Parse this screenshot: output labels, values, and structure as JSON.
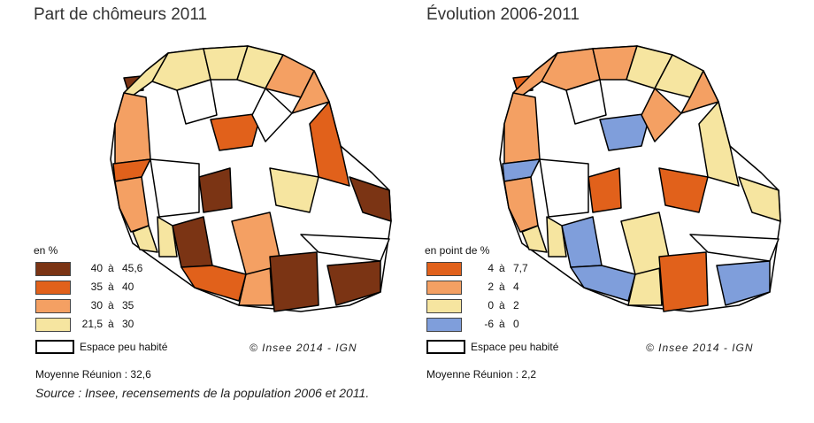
{
  "maps": [
    {
      "title": "Part de chômeurs 2011",
      "legend_title": "en %",
      "classes": [
        {
          "lo": "40",
          "sep": "à",
          "hi": "45,6",
          "color": "#7b3414"
        },
        {
          "lo": "35",
          "sep": "à",
          "hi": "40",
          "color": "#e1611b"
        },
        {
          "lo": "30",
          "sep": "à",
          "hi": "35",
          "color": "#f4a063"
        },
        {
          "lo": "21,5",
          "sep": "à",
          "hi": "30",
          "color": "#f6e5a0"
        }
      ],
      "outline_label": "Espace peu habité",
      "copyright": "© Insee 2014 - IGN",
      "mean": "Moyenne Réunion : 32,6"
    },
    {
      "title": "Évolution 2006-2011",
      "legend_title": "en point de %",
      "classes": [
        {
          "lo": "4",
          "sep": "à",
          "hi": "7,7",
          "color": "#e1611b"
        },
        {
          "lo": "2",
          "sep": "à",
          "hi": "4",
          "color": "#f4a063"
        },
        {
          "lo": "0",
          "sep": "à",
          "hi": "2",
          "color": "#f6e5a0"
        },
        {
          "lo": "-6",
          "sep": "à",
          "hi": "0",
          "color": "#7f9edb"
        }
      ],
      "outline_label": "Espace peu habité",
      "copyright": "© Insee 2014 - IGN",
      "mean": "Moyenne Réunion : 2,2"
    }
  ],
  "source": "Source : Insee, recensements de la population 2006 et 2011."
}
